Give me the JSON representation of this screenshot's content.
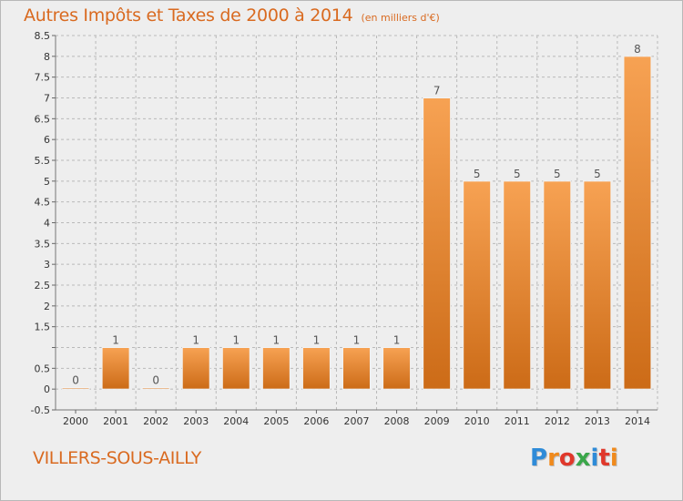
{
  "header": {
    "title": "Autres Impôts et Taxes de 2000 à 2014",
    "unit": "(en milliers d'€)"
  },
  "footer": {
    "commune": "VILLERS-SOUS-AILLY",
    "brand": "Proxiti"
  },
  "colors": {
    "bar_top": "#f7a253",
    "bar_bottom": "#cc6b17",
    "title": "#d96a20",
    "grid": "#b9b9b9",
    "brand_letters": [
      "#2e8bd8",
      "#f08a1c",
      "#e0382b",
      "#3aa64a",
      "#2e8bd8",
      "#e0382b",
      "#f08a1c"
    ]
  },
  "chart_data": {
    "type": "bar",
    "title": "Autres Impôts et Taxes de 2000 à 2014",
    "subtitle": "(en milliers d'€)",
    "categories": [
      "2000",
      "2001",
      "2002",
      "2003",
      "2004",
      "2005",
      "2006",
      "2007",
      "2008",
      "2009",
      "2010",
      "2011",
      "2012",
      "2013",
      "2014"
    ],
    "values": [
      0,
      1,
      0,
      1,
      1,
      1,
      1,
      1,
      1,
      7,
      5,
      5,
      5,
      5,
      8
    ],
    "value_labels": [
      "0",
      "1",
      "0",
      "1",
      "1",
      "1",
      "1",
      "1",
      "1",
      "7",
      "5",
      "5",
      "5",
      "5",
      "8"
    ],
    "yticks": [
      -0.5,
      0,
      0.5,
      1,
      1.5,
      2,
      2.5,
      3,
      3.5,
      4,
      4.5,
      5,
      5.5,
      6,
      6.5,
      7,
      7.5,
      8,
      8.5
    ],
    "ytick_labels": [
      "-0.5",
      "0",
      "0.5",
      "",
      "1.5",
      "2",
      "2.5",
      "3",
      "3.5",
      "4",
      "4.5",
      "5",
      "5.5",
      "6",
      "6.5",
      "7",
      "7.5",
      "8",
      "8.5"
    ],
    "ylim": [
      -0.5,
      8.5
    ],
    "grid": true,
    "grid_style": "dashed",
    "xlabel": "",
    "ylabel": ""
  }
}
